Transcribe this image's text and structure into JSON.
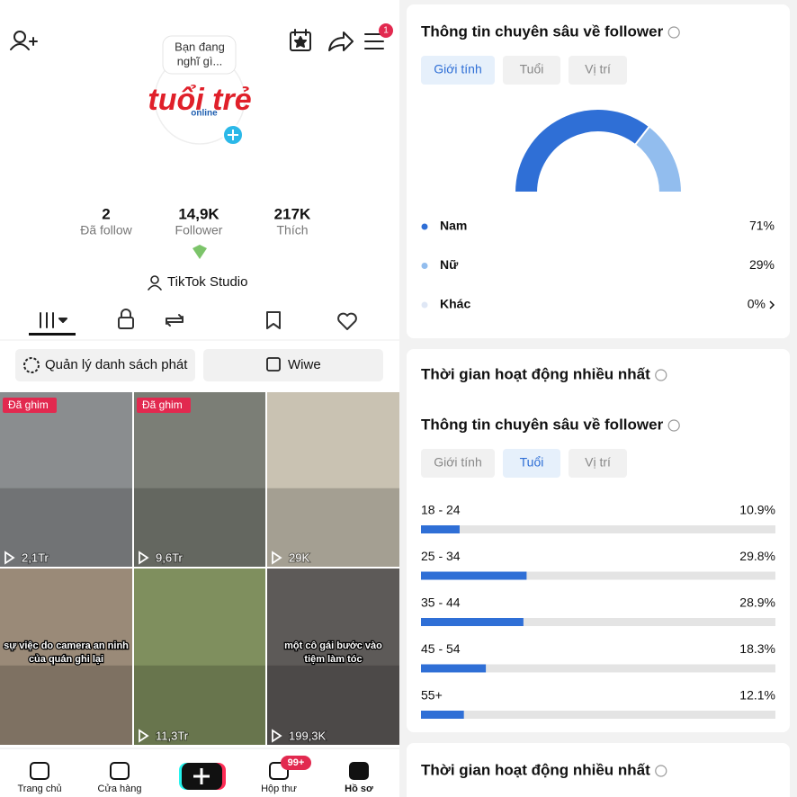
{
  "profile": {
    "bubble": [
      "Bạn đang",
      "nghĩ gì..."
    ],
    "logo": "tuổi trẻ",
    "logo_sub": "online",
    "menu_badge": "1",
    "stats": [
      {
        "value": "2",
        "label": "Đã follow"
      },
      {
        "value": "14,9K",
        "label": "Follower"
      },
      {
        "value": "217K",
        "label": "Thích"
      }
    ],
    "studio": "TikTok Studio",
    "buttons": [
      "Quản lý danh sách phát",
      "Wiwe"
    ]
  },
  "videos": [
    {
      "pin": "Đã ghim",
      "views": "2,1Tr"
    },
    {
      "pin": "Đã ghim",
      "views": "9,6Tr"
    },
    {
      "views": "29K"
    },
    {
      "caption": [
        "sự việc do camera an ninh",
        "của quán ghi lại"
      ]
    },
    {
      "views": "11,3Tr"
    },
    {
      "caption": [
        "một cô gái bước vào",
        "tiệm làm tóc"
      ],
      "views": "199,3K"
    }
  ],
  "nav": [
    {
      "label": "Trang chủ"
    },
    {
      "label": "Cửa hàng"
    },
    {
      "label": "Hộp thư",
      "badge": "99+"
    },
    {
      "label": "Hồ sơ"
    }
  ],
  "sections": [
    {
      "title": "Thông tin chuyên sâu về follower",
      "tabs": [
        "Giới tính",
        "Tuổi",
        "Vị trí"
      ],
      "active_tab": 0
    },
    {
      "title": "Thời gian hoạt động nhiều nhất"
    },
    {
      "title": "Thông tin chuyên sâu về follower",
      "tabs": [
        "Giới tính",
        "Tuổi",
        "Vị trí"
      ],
      "active_tab": 1
    },
    {
      "title": "Thời gian hoạt động nhiều nhất"
    }
  ],
  "chart_data": [
    {
      "type": "donut",
      "categories": [
        "Nam",
        "Nữ",
        "Khác"
      ],
      "values": [
        71,
        29,
        0
      ],
      "value_labels": [
        "71%",
        "29%",
        "0%"
      ],
      "colors": [
        "#2f6fd6",
        "#92bdee",
        "#dfe7f5"
      ]
    },
    {
      "type": "bar",
      "categories": [
        "18 - 24",
        "25 - 34",
        "35 - 44",
        "45 - 54",
        "55+"
      ],
      "values": [
        10.9,
        29.8,
        28.9,
        18.3,
        12.1
      ],
      "value_labels": [
        "10.9%",
        "29.8%",
        "28.9%",
        "18.3%",
        "12.1%"
      ],
      "color": "#2f6fd6",
      "xlim": [
        0,
        100
      ]
    }
  ]
}
